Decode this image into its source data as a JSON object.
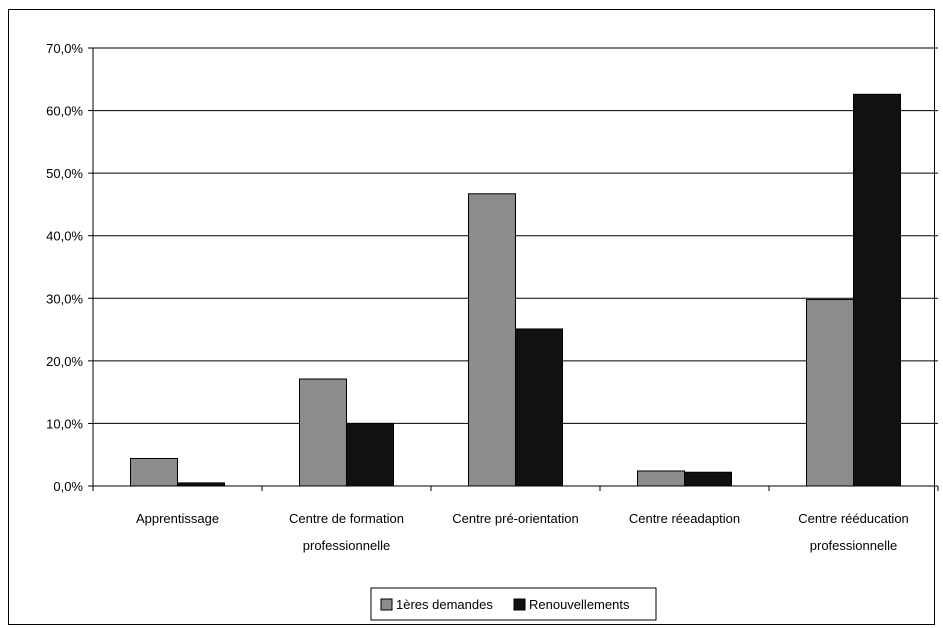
{
  "chart_data": {
    "type": "bar",
    "categories": [
      [
        "Apprentissage"
      ],
      [
        "Centre de formation",
        "professionnelle"
      ],
      [
        "Centre pré-orientation"
      ],
      [
        "Centre réeadaption"
      ],
      [
        "Centre rééducation",
        "professionnelle"
      ]
    ],
    "series": [
      {
        "name": "1ères demandes",
        "color": "#8c8c8c",
        "values": [
          4.4,
          17.1,
          46.7,
          2.4,
          29.8
        ]
      },
      {
        "name": "Renouvellements",
        "color": "#111111",
        "values": [
          0.5,
          10.0,
          25.1,
          2.2,
          62.6
        ]
      }
    ],
    "ylim": [
      0,
      70
    ],
    "yticks": [
      "0,0%",
      "10,0%",
      "20,0%",
      "30,0%",
      "40,0%",
      "50,0%",
      "60,0%",
      "70,0%"
    ],
    "grid": true,
    "legend": "bottom-center",
    "title": "",
    "xlabel": "",
    "ylabel": ""
  }
}
